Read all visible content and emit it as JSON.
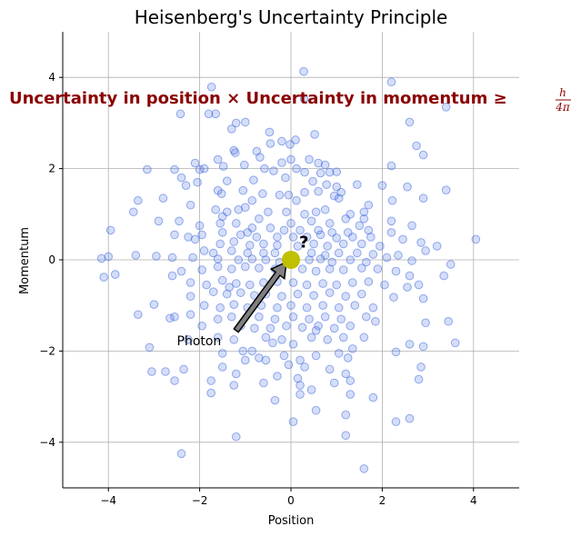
{
  "chart_data": {
    "type": "scatter",
    "title": "Heisenberg's Uncertainty Principle",
    "xlabel": "Position",
    "ylabel": "Momentum",
    "xlim": [
      -5,
      5
    ],
    "ylim": [
      -5,
      5
    ],
    "xticks": [
      -4,
      -2,
      0,
      2,
      4
    ],
    "yticks": [
      -4,
      -2,
      0,
      2,
      4
    ],
    "grid": true,
    "point_color": "#4169e1",
    "particle": {
      "x": 0,
      "y": 0,
      "color": "#c0c000"
    },
    "particle_label": "?",
    "photon_arrow": {
      "from": [
        -1.2,
        -1.55
      ],
      "to": [
        -0.1,
        -0.05
      ],
      "face_color": "#808080"
    },
    "photon_label": "Photon",
    "annotation": {
      "text": "Uncertainty in position × Uncertainty in momentum ≥",
      "frac_numerator": "h",
      "frac_denominator": "4π"
    },
    "points": [
      [
        0.28,
        4.13
      ],
      [
        0.29,
        3.53
      ],
      [
        -1.74,
        3.79
      ],
      [
        2.2,
        3.9
      ],
      [
        3.4,
        3.35
      ],
      [
        -2.42,
        3.2
      ],
      [
        -1.8,
        3.2
      ],
      [
        -1.65,
        3.2
      ],
      [
        -1.2,
        3.0
      ],
      [
        -1.0,
        3.02
      ],
      [
        2.6,
        3.02
      ],
      [
        -1.3,
        2.87
      ],
      [
        -0.47,
        2.8
      ],
      [
        0.52,
        2.75
      ],
      [
        -0.2,
        2.6
      ],
      [
        0.1,
        2.63
      ],
      [
        -0.45,
        2.55
      ],
      [
        -0.02,
        2.53
      ],
      [
        2.75,
        2.5
      ],
      [
        -1.25,
        2.4
      ],
      [
        -0.75,
        2.38
      ],
      [
        -0.68,
        2.25
      ],
      [
        0.0,
        2.2
      ],
      [
        -1.22,
        2.35
      ],
      [
        2.9,
        2.3
      ],
      [
        0.6,
        2.12
      ],
      [
        0.4,
        2.2
      ],
      [
        -1.6,
        2.2
      ],
      [
        -1.02,
        2.08
      ],
      [
        -1.9,
        2.0
      ],
      [
        -0.58,
        2.0
      ],
      [
        -1.48,
        2.05
      ],
      [
        0.12,
        2.0
      ],
      [
        0.3,
        1.92
      ],
      [
        0.65,
        1.9
      ],
      [
        0.85,
        1.92
      ],
      [
        1.0,
        1.93
      ],
      [
        -0.2,
        2.13
      ],
      [
        2.2,
        2.06
      ],
      [
        -2.55,
        1.98
      ],
      [
        -3.15,
        1.98
      ],
      [
        -2.1,
        2.12
      ],
      [
        -2.4,
        1.8
      ],
      [
        -0.12,
        1.8
      ],
      [
        -0.82,
        1.75
      ],
      [
        -1.4,
        1.73
      ],
      [
        -2.05,
        1.7
      ],
      [
        0.48,
        1.72
      ],
      [
        0.78,
        1.65
      ],
      [
        1.0,
        1.6
      ],
      [
        1.45,
        1.65
      ],
      [
        2.0,
        1.63
      ],
      [
        2.55,
        1.6
      ],
      [
        -2.3,
        1.63
      ],
      [
        -1.6,
        1.52
      ],
      [
        -1.05,
        1.52
      ],
      [
        -0.62,
        1.45
      ],
      [
        -0.25,
        1.42
      ],
      [
        0.3,
        1.48
      ],
      [
        0.6,
        1.5
      ],
      [
        0.95,
        1.4
      ],
      [
        1.1,
        1.48
      ],
      [
        2.22,
        1.3
      ],
      [
        -2.8,
        1.35
      ],
      [
        -3.35,
        1.3
      ],
      [
        -1.52,
        1.45
      ],
      [
        -0.85,
        1.3
      ],
      [
        -0.05,
        1.42
      ],
      [
        0.12,
        1.3
      ],
      [
        1.05,
        1.35
      ],
      [
        1.7,
        1.2
      ],
      [
        2.9,
        1.35
      ],
      [
        3.4,
        1.53
      ],
      [
        -2.2,
        1.2
      ],
      [
        -1.65,
        1.1
      ],
      [
        -1.4,
        1.05
      ],
      [
        -1.15,
        1.1
      ],
      [
        -1.0,
        1.15
      ],
      [
        -0.5,
        1.05
      ],
      [
        -0.1,
        1.05
      ],
      [
        0.3,
        1.0
      ],
      [
        0.55,
        1.05
      ],
      [
        0.75,
        1.1
      ],
      [
        1.3,
        1.0
      ],
      [
        1.6,
        1.05
      ],
      [
        -3.45,
        1.05
      ],
      [
        -2.9,
        0.85
      ],
      [
        -2.45,
        0.85
      ],
      [
        -1.5,
        0.95
      ],
      [
        -0.7,
        0.9
      ],
      [
        0.0,
        0.8
      ],
      [
        0.45,
        0.85
      ],
      [
        0.85,
        0.8
      ],
      [
        1.2,
        0.9
      ],
      [
        1.6,
        0.9
      ],
      [
        2.2,
        0.85
      ],
      [
        2.65,
        0.75
      ],
      [
        -2.0,
        0.75
      ],
      [
        -1.55,
        0.8
      ],
      [
        -1.2,
        0.8
      ],
      [
        -0.85,
        0.7
      ],
      [
        -0.45,
        0.7
      ],
      [
        -0.15,
        0.65
      ],
      [
        0.2,
        0.65
      ],
      [
        0.6,
        0.65
      ],
      [
        0.9,
        0.6
      ],
      [
        1.25,
        0.6
      ],
      [
        1.7,
        0.65
      ],
      [
        2.2,
        0.6
      ],
      [
        -3.95,
        0.65
      ],
      [
        -2.55,
        0.55
      ],
      [
        -2.25,
        0.5
      ],
      [
        -1.95,
        0.55
      ],
      [
        -1.5,
        0.6
      ],
      [
        -1.1,
        0.55
      ],
      [
        -0.75,
        0.5
      ],
      [
        -0.3,
        0.5
      ],
      [
        0.05,
        0.5
      ],
      [
        0.35,
        0.5
      ],
      [
        0.65,
        0.55
      ],
      [
        1.0,
        0.48
      ],
      [
        1.35,
        0.5
      ],
      [
        1.75,
        0.5
      ],
      [
        2.45,
        0.45
      ],
      [
        3.2,
        0.3
      ],
      [
        4.05,
        0.45
      ],
      [
        -2.1,
        0.45
      ],
      [
        -1.55,
        0.35
      ],
      [
        -1.25,
        0.4
      ],
      [
        -0.9,
        0.32
      ],
      [
        -0.6,
        0.35
      ],
      [
        -0.3,
        0.32
      ],
      [
        0.15,
        0.3
      ],
      [
        0.5,
        0.35
      ],
      [
        0.8,
        0.3
      ],
      [
        1.15,
        0.35
      ],
      [
        1.55,
        0.35
      ],
      [
        1.95,
        0.3
      ],
      [
        2.85,
        0.38
      ],
      [
        2.95,
        0.2
      ],
      [
        -1.9,
        0.2
      ],
      [
        -1.7,
        0.15
      ],
      [
        -1.3,
        0.2
      ],
      [
        -0.95,
        0.15
      ],
      [
        -0.6,
        0.15
      ],
      [
        -0.35,
        0.15
      ],
      [
        0.45,
        0.15
      ],
      [
        0.75,
        0.1
      ],
      [
        1.05,
        0.15
      ],
      [
        1.45,
        0.15
      ],
      [
        1.8,
        0.12
      ],
      [
        2.35,
        0.1
      ],
      [
        -4.0,
        0.07
      ],
      [
        -4.15,
        0.03
      ],
      [
        -3.4,
        0.1
      ],
      [
        -2.95,
        0.08
      ],
      [
        -2.6,
        0.05
      ],
      [
        -2.15,
        0.05
      ],
      [
        -1.6,
        0.02
      ],
      [
        -1.15,
        0.0
      ],
      [
        -0.85,
        0.02
      ],
      [
        -0.55,
        0.0
      ],
      [
        -0.25,
        -0.05
      ],
      [
        0.4,
        0.0
      ],
      [
        0.65,
        0.02
      ],
      [
        0.9,
        -0.05
      ],
      [
        1.3,
        0.0
      ],
      [
        1.65,
        -0.05
      ],
      [
        2.1,
        0.05
      ],
      [
        2.65,
        -0.02
      ],
      [
        3.5,
        -0.1
      ],
      [
        -3.85,
        -0.32
      ],
      [
        -4.1,
        -0.38
      ],
      [
        -2.6,
        -0.35
      ],
      [
        -2.4,
        -0.25
      ],
      [
        -1.95,
        -0.22
      ],
      [
        -1.6,
        -0.15
      ],
      [
        -1.3,
        -0.2
      ],
      [
        -1.0,
        -0.15
      ],
      [
        -0.7,
        -0.18
      ],
      [
        -0.35,
        -0.2
      ],
      [
        0.25,
        -0.2
      ],
      [
        0.55,
        -0.25
      ],
      [
        0.85,
        -0.2
      ],
      [
        1.15,
        -0.22
      ],
      [
        1.55,
        -0.18
      ],
      [
        1.9,
        -0.2
      ],
      [
        2.3,
        -0.25
      ],
      [
        2.6,
        -0.35
      ],
      [
        3.35,
        -0.35
      ],
      [
        -2.2,
        -0.5
      ],
      [
        -1.85,
        -0.55
      ],
      [
        -1.5,
        -0.45
      ],
      [
        -1.2,
        -0.52
      ],
      [
        -0.9,
        -0.55
      ],
      [
        -0.6,
        -0.5
      ],
      [
        -0.3,
        -0.48
      ],
      [
        0.05,
        -0.5
      ],
      [
        0.35,
        -0.55
      ],
      [
        0.7,
        -0.52
      ],
      [
        1.0,
        -0.55
      ],
      [
        1.35,
        -0.5
      ],
      [
        1.7,
        -0.48
      ],
      [
        2.05,
        -0.55
      ],
      [
        2.55,
        -0.6
      ],
      [
        2.8,
        -0.55
      ],
      [
        -1.7,
        -0.7
      ],
      [
        -1.4,
        -0.75
      ],
      [
        -1.1,
        -0.72
      ],
      [
        -0.8,
        -0.78
      ],
      [
        -0.55,
        -0.75
      ],
      [
        -0.2,
        -0.8
      ],
      [
        0.15,
        -0.75
      ],
      [
        0.5,
        -0.78
      ],
      [
        0.85,
        -0.72
      ],
      [
        1.2,
        -0.8
      ],
      [
        1.55,
        -0.75
      ],
      [
        2.25,
        -0.82
      ],
      [
        2.9,
        -0.85
      ],
      [
        -2.2,
        -0.8
      ],
      [
        -1.9,
        -1.0
      ],
      [
        -1.55,
        -1.05
      ],
      [
        -1.25,
        -0.98
      ],
      [
        -0.95,
        -1.05
      ],
      [
        -0.65,
        -1.0
      ],
      [
        -0.3,
        -1.05
      ],
      [
        0.0,
        -1.0
      ],
      [
        0.35,
        -1.05
      ],
      [
        0.7,
        -1.0
      ],
      [
        1.05,
        -1.05
      ],
      [
        1.4,
        -1.0
      ],
      [
        1.8,
        -1.05
      ],
      [
        -3.0,
        -0.98
      ],
      [
        -2.55,
        -1.25
      ],
      [
        -2.2,
        -1.2
      ],
      [
        -1.6,
        -1.3
      ],
      [
        -1.3,
        -1.25
      ],
      [
        -0.7,
        -1.25
      ],
      [
        -0.35,
        -1.3
      ],
      [
        0.05,
        -1.25
      ],
      [
        0.4,
        -1.3
      ],
      [
        0.75,
        -1.25
      ],
      [
        1.1,
        -1.3
      ],
      [
        1.65,
        -1.25
      ],
      [
        -3.35,
        -1.2
      ],
      [
        -2.65,
        -1.28
      ],
      [
        -1.95,
        -1.45
      ],
      [
        -1.1,
        -1.45
      ],
      [
        -0.8,
        -1.5
      ],
      [
        -0.45,
        -1.5
      ],
      [
        -0.1,
        -1.45
      ],
      [
        0.25,
        -1.48
      ],
      [
        0.6,
        -1.45
      ],
      [
        0.95,
        -1.5
      ],
      [
        1.3,
        -1.45
      ],
      [
        1.85,
        -1.35
      ],
      [
        2.95,
        -1.38
      ],
      [
        3.45,
        -1.35
      ],
      [
        -2.25,
        -1.75
      ],
      [
        -1.6,
        -1.7
      ],
      [
        -1.25,
        -1.75
      ],
      [
        -0.55,
        -1.7
      ],
      [
        -0.2,
        -1.75
      ],
      [
        0.45,
        -1.7
      ],
      [
        0.8,
        -1.75
      ],
      [
        1.15,
        -1.7
      ],
      [
        1.6,
        -1.7
      ],
      [
        2.6,
        -1.85
      ],
      [
        3.6,
        -1.82
      ],
      [
        -3.1,
        -1.92
      ],
      [
        -1.05,
        -2.0
      ],
      [
        -0.4,
        -1.82
      ],
      [
        0.05,
        -1.85
      ],
      [
        1.05,
        -2.05
      ],
      [
        1.35,
        -1.95
      ],
      [
        2.3,
        -2.02
      ],
      [
        2.9,
        -1.9
      ],
      [
        -1.5,
        -2.05
      ],
      [
        -0.85,
        -2.0
      ],
      [
        -0.55,
        -2.2
      ],
      [
        -0.15,
        -2.1
      ],
      [
        0.2,
        -2.2
      ],
      [
        0.55,
        -2.1
      ],
      [
        1.25,
        -2.15
      ],
      [
        -2.35,
        -2.4
      ],
      [
        -1.0,
        -2.2
      ],
      [
        -0.7,
        -2.15
      ],
      [
        -0.05,
        -2.3
      ],
      [
        0.3,
        -2.35
      ],
      [
        0.85,
        -2.4
      ],
      [
        1.2,
        -2.5
      ],
      [
        2.85,
        -2.35
      ],
      [
        -3.05,
        -2.45
      ],
      [
        -2.75,
        -2.45
      ],
      [
        -1.5,
        -2.35
      ],
      [
        -1.2,
        -2.5
      ],
      [
        -0.3,
        -2.55
      ],
      [
        0.15,
        -2.6
      ],
      [
        1.3,
        -2.65
      ],
      [
        -2.55,
        -2.65
      ],
      [
        -0.6,
        -2.7
      ],
      [
        0.2,
        -2.75
      ],
      [
        0.95,
        -2.7
      ],
      [
        2.8,
        -2.62
      ],
      [
        -1.75,
        -2.65
      ],
      [
        1.3,
        -2.95
      ],
      [
        1.8,
        -3.02
      ],
      [
        -1.75,
        -2.92
      ],
      [
        0.2,
        -2.95
      ],
      [
        -0.35,
        -3.08
      ],
      [
        0.45,
        -2.85
      ],
      [
        -1.25,
        -2.75
      ],
      [
        0.55,
        -3.3
      ],
      [
        0.05,
        -3.55
      ],
      [
        1.2,
        -3.4
      ],
      [
        2.3,
        -3.55
      ],
      [
        2.6,
        -3.48
      ],
      [
        -1.2,
        -3.88
      ],
      [
        1.2,
        -3.85
      ],
      [
        -2.4,
        -4.25
      ],
      [
        1.6,
        -4.58
      ],
      [
        0.75,
        2.08
      ],
      [
        -0.38,
        1.95
      ],
      [
        1.5,
        0.75
      ],
      [
        -2.0,
        1.98
      ],
      [
        -0.95,
        0.6
      ],
      [
        0.55,
        -1.55
      ],
      [
        -1.35,
        -0.6
      ]
    ]
  }
}
